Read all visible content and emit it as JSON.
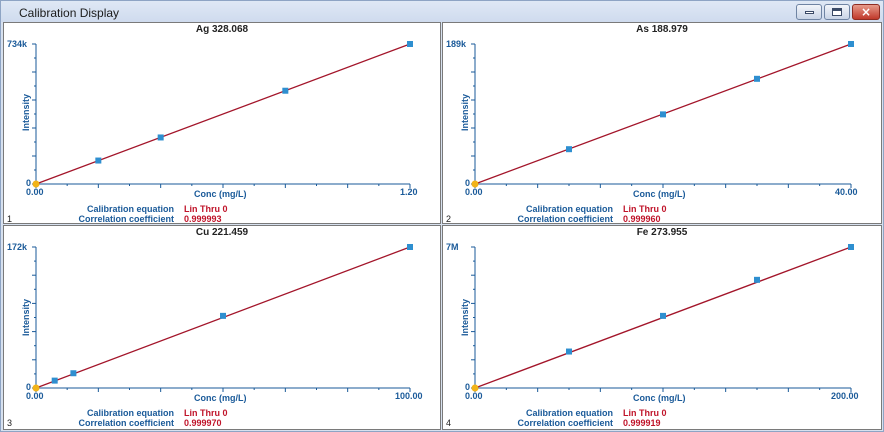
{
  "window": {
    "title": "Calibration Display",
    "minimize_glyph": "minimize-icon",
    "maximize_glyph": "maximize-icon",
    "close_glyph": "×"
  },
  "colors": {
    "axis": "#1a5a99",
    "fit_line": "#a3152a",
    "standard_marker": "#2e8fd0",
    "origin_marker": "#f2b318",
    "value_text": "#c0142a"
  },
  "panels": [
    {
      "number": "1",
      "element": "Ag 328.068",
      "y_label": "Intensity",
      "y_max_label": "734k",
      "y_zero_label": "0",
      "x_label": "Conc (mg/L)",
      "x_min_label": "0.00",
      "x_max_label": "1.20",
      "equation_label": "Calibration equation",
      "equation_value": "Lin Thru 0",
      "correlation_label": "Correlation coefficient",
      "correlation_value": "0.999993"
    },
    {
      "number": "2",
      "element": "As 188.979",
      "y_label": "Intensity",
      "y_max_label": "189k",
      "y_zero_label": "0",
      "x_label": "Conc (mg/L)",
      "x_min_label": "0.00",
      "x_max_label": "40.00",
      "equation_label": "Calibration equation",
      "equation_value": "Lin Thru 0",
      "correlation_label": "Correlation coefficient",
      "correlation_value": "0.999960"
    },
    {
      "number": "3",
      "element": "Cu 221.459",
      "y_label": "Intensity",
      "y_max_label": "172k",
      "y_zero_label": "0",
      "x_label": "Conc (mg/L)",
      "x_min_label": "0.00",
      "x_max_label": "100.00",
      "equation_label": "Calibration equation",
      "equation_value": "Lin Thru 0",
      "correlation_label": "Correlation coefficient",
      "correlation_value": "0.999970"
    },
    {
      "number": "4",
      "element": "Fe 273.955",
      "y_label": "Intensity",
      "y_max_label": "7M",
      "y_zero_label": "0",
      "x_label": "Conc (mg/L)",
      "x_min_label": "0.00",
      "x_max_label": "200.00",
      "equation_label": "Calibration equation",
      "equation_value": "Lin Thru 0",
      "correlation_label": "Correlation coefficient",
      "correlation_value": "0.999919"
    }
  ],
  "chart_data": [
    {
      "type": "scatter",
      "title": "Ag 328.068",
      "xlabel": "Conc (mg/L)",
      "ylabel": "Intensity",
      "xlim": [
        0,
        1.2
      ],
      "ylim": [
        0,
        734000
      ],
      "series": [
        {
          "x": [
            0,
            0.2,
            0.4,
            0.8,
            1.2
          ],
          "y": [
            0,
            123000,
            244000,
            489000,
            734000
          ]
        }
      ],
      "fit": "Lin Thru 0"
    },
    {
      "type": "scatter",
      "title": "As 188.979",
      "xlabel": "Conc (mg/L)",
      "ylabel": "Intensity",
      "xlim": [
        0,
        40
      ],
      "ylim": [
        0,
        189000
      ],
      "series": [
        {
          "x": [
            0,
            10,
            20,
            30,
            40
          ],
          "y": [
            0,
            47000,
            94000,
            142000,
            189000
          ]
        }
      ],
      "fit": "Lin Thru 0"
    },
    {
      "type": "scatter",
      "title": "Cu 221.459",
      "xlabel": "Conc (mg/L)",
      "ylabel": "Intensity",
      "xlim": [
        0,
        100
      ],
      "ylim": [
        0,
        172000
      ],
      "series": [
        {
          "x": [
            0,
            5,
            10,
            50,
            100
          ],
          "y": [
            0,
            9000,
            18000,
            88000,
            172000
          ]
        }
      ],
      "fit": "Lin Thru 0"
    },
    {
      "type": "scatter",
      "title": "Fe 273.955",
      "xlabel": "Conc (mg/L)",
      "ylabel": "Intensity",
      "xlim": [
        0,
        200
      ],
      "ylim": [
        0,
        7000000
      ],
      "series": [
        {
          "x": [
            0,
            50,
            100,
            150,
            200
          ],
          "y": [
            0,
            1810000,
            3580000,
            5370000,
            7000000
          ]
        }
      ],
      "fit": "Lin Thru 0"
    }
  ]
}
